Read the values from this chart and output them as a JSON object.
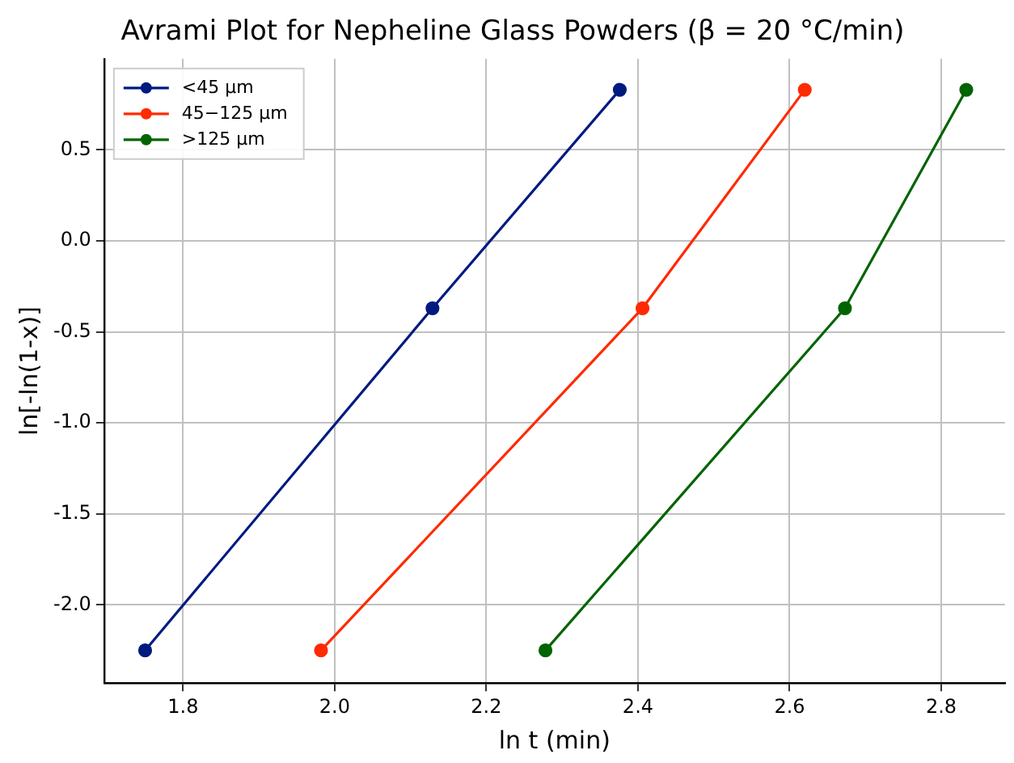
{
  "chart_data": {
    "type": "line",
    "title": "Avrami Plot for Nepheline Glass Powders (β = 20 °C/min)",
    "xlabel": "ln t (min)",
    "ylabel": "ln[-ln(1-x)]",
    "series": [
      {
        "name": "<45 µm",
        "color": "#001a80",
        "x": [
          1.75,
          2.129,
          2.376
        ],
        "values": [
          -2.25,
          -0.37,
          0.83
        ]
      },
      {
        "name": "45−125 µm",
        "color": "#ff2a00",
        "x": [
          1.982,
          2.406,
          2.62
        ],
        "values": [
          -2.25,
          -0.37,
          0.83
        ]
      },
      {
        "name": ">125 µm",
        "color": "#006400",
        "x": [
          2.278,
          2.673,
          2.833
        ],
        "values": [
          -2.25,
          -0.37,
          0.83
        ]
      }
    ],
    "xlim": [
      1.696,
      2.884
    ],
    "xticks": [
      1.8,
      {
        "value": 2,
        "label": "2.0"
      },
      2.2,
      2.4,
      2.6,
      2.8
    ],
    "ylim": [
      -2.43,
      1.0
    ],
    "yticks": [
      {
        "value": -2,
        "label": "-2.0"
      },
      -1.5,
      {
        "value": -1,
        "label": "-1.0"
      },
      -0.5,
      {
        "value": 0,
        "label": "0.0"
      },
      0.5
    ],
    "grid": true,
    "legend": "top left",
    "marker": "circle",
    "line_style": "solid"
  }
}
